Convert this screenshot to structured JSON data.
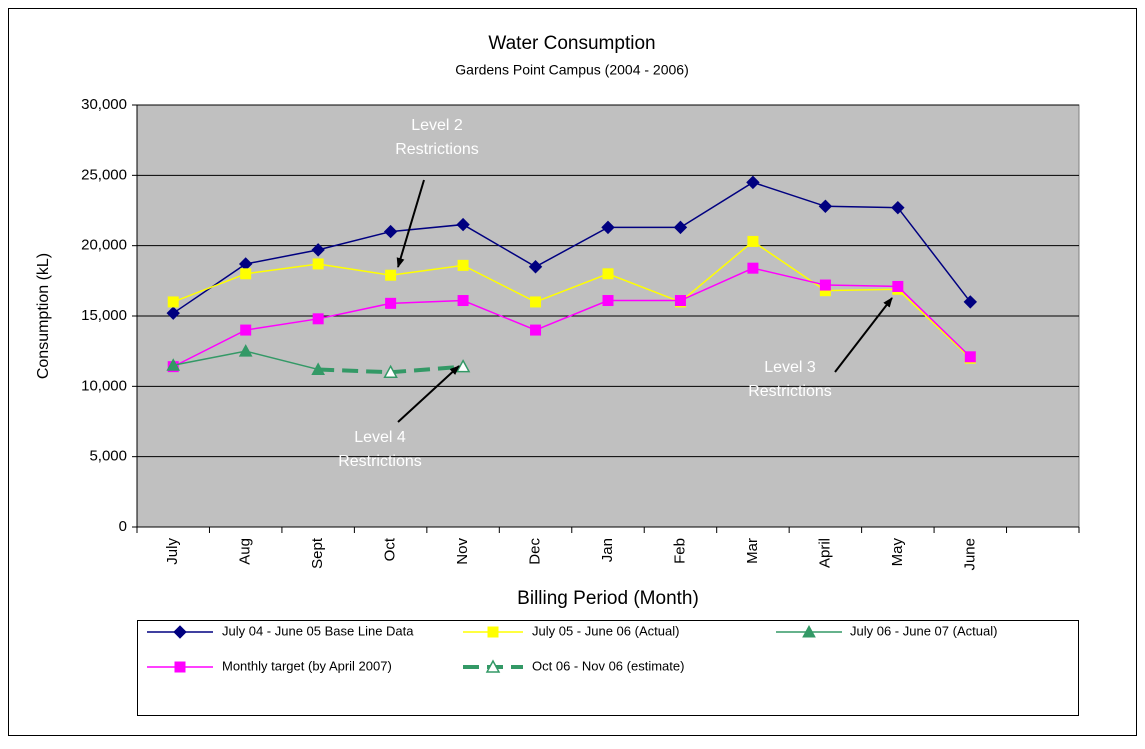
{
  "chart_data": {
    "type": "line",
    "title": "Water Consumption",
    "subtitle": "Gardens Point Campus (2004 - 2006)",
    "x_label": "Billing Period (Month)",
    "y_label": "Consumption (kL)",
    "categories": [
      "July",
      "Aug",
      "Sept",
      "Oct",
      "Nov",
      "Dec",
      "Jan",
      "Feb",
      "Mar",
      "April",
      "May",
      "June",
      null
    ],
    "ylim": [
      0,
      30000
    ],
    "yticks": [
      0,
      {
        "value": 5000,
        "label": "5,000"
      },
      {
        "value": 10000,
        "label": "10,000"
      },
      {
        "value": 15000,
        "label": "15,000"
      },
      {
        "value": 20000,
        "label": "20,000"
      },
      {
        "value": 25000,
        "label": "25,000"
      },
      {
        "value": 30000,
        "label": "30,000"
      }
    ],
    "grid": true,
    "legend": "bottom",
    "series": [
      {
        "name": "July 04 - June 05 Base Line Data",
        "color": "#000080",
        "marker": "diamond",
        "dashed": false,
        "values": [
          15200,
          18700,
          19700,
          21000,
          21500,
          18500,
          21300,
          21300,
          24500,
          22800,
          22700,
          16000,
          null
        ]
      },
      {
        "name": "July 05 - June 06 (Actual)",
        "color": "#ffff00",
        "marker": "square",
        "dashed": false,
        "values": [
          16000,
          18000,
          18700,
          17900,
          18600,
          16000,
          18000,
          16000,
          20300,
          16800,
          16900,
          12000,
          null
        ]
      },
      {
        "name": "July 06 - June 07 (Actual)",
        "color": "#339966",
        "marker": "triangle",
        "dashed": false,
        "values": [
          11500,
          12500,
          11200,
          null,
          null,
          null,
          null,
          null,
          null,
          null,
          null,
          null,
          null
        ]
      },
      {
        "name": "Monthly target (by April 2007)",
        "color": "#ff00ff",
        "marker": "square",
        "dashed": false,
        "values": [
          11400,
          14000,
          14800,
          15900,
          16100,
          14000,
          16100,
          16100,
          18400,
          17200,
          17100,
          12100,
          null
        ]
      },
      {
        "name": "Oct 06 - Nov 06 (estimate)",
        "color": "#339966",
        "marker": "triangle-open",
        "dashed": true,
        "values": [
          null,
          null,
          11200,
          11000,
          11400,
          null,
          null,
          null,
          null,
          null,
          null,
          null,
          null
        ]
      }
    ],
    "annotations": [
      {
        "lines": [
          "Level 2",
          "Restrictions"
        ]
      },
      {
        "lines": [
          "Level 3",
          "Restrictions"
        ]
      },
      {
        "lines": [
          "Level 4",
          "Restrictions"
        ]
      }
    ]
  }
}
